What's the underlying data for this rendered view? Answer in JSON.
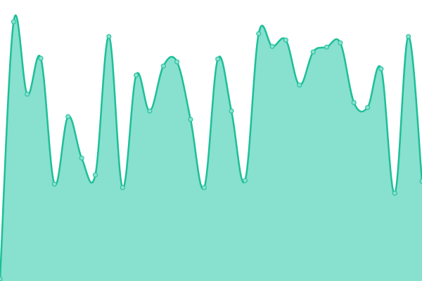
{
  "chart_data": {
    "type": "area",
    "smooth": true,
    "grid": false,
    "axes_visible": false,
    "legend": "none",
    "ylim": [
      0,
      400
    ],
    "x": [
      0,
      1,
      2,
      3,
      4,
      5,
      6,
      7,
      8,
      9,
      10,
      11,
      12,
      13,
      14,
      15,
      16,
      17,
      18,
      19,
      20,
      21,
      22,
      23,
      24,
      25,
      26,
      27,
      28,
      29,
      30,
      31
    ],
    "series": [
      {
        "values": [
          3,
          369,
          266,
          317,
          138,
          234,
          175,
          151,
          348,
          133,
          293,
          242,
          306,
          312,
          230,
          133,
          316,
          242,
          143,
          352,
          334,
          343,
          279,
          326,
          333,
          339,
          254,
          247,
          302,
          125,
          348,
          142
        ],
        "line_color": "#1dbf98",
        "fill_color": "#88e0cf",
        "marker_fill": "#88e0cf"
      }
    ]
  }
}
